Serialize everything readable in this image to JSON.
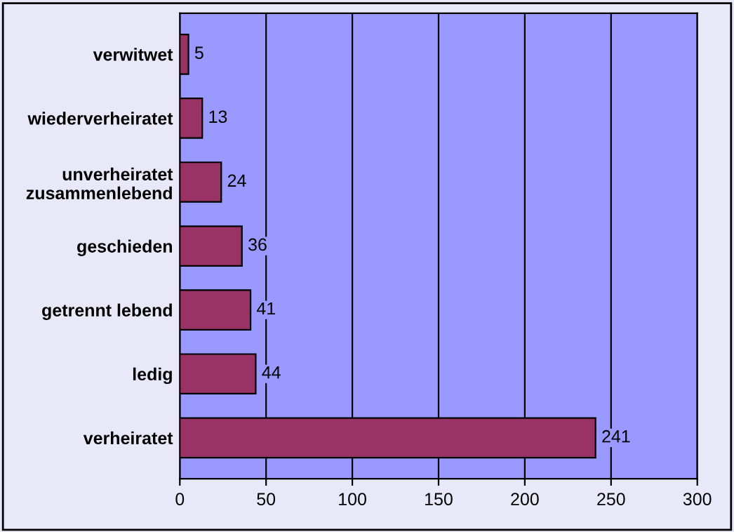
{
  "chart_data": {
    "type": "bar",
    "orientation": "horizontal",
    "categories": [
      "verwitwet",
      "wiederverheiratet",
      "unverheiratet\nzusammenlebend",
      "geschieden",
      "getrennt lebend",
      "ledig",
      "verheiratet"
    ],
    "values": [
      5,
      13,
      24,
      36,
      41,
      44,
      241
    ],
    "color": "#993366",
    "xlim": [
      0,
      300
    ],
    "xticks": [
      0,
      50,
      100,
      150,
      200,
      250,
      300
    ],
    "grid": "x",
    "data_labels": true,
    "legend": false
  }
}
